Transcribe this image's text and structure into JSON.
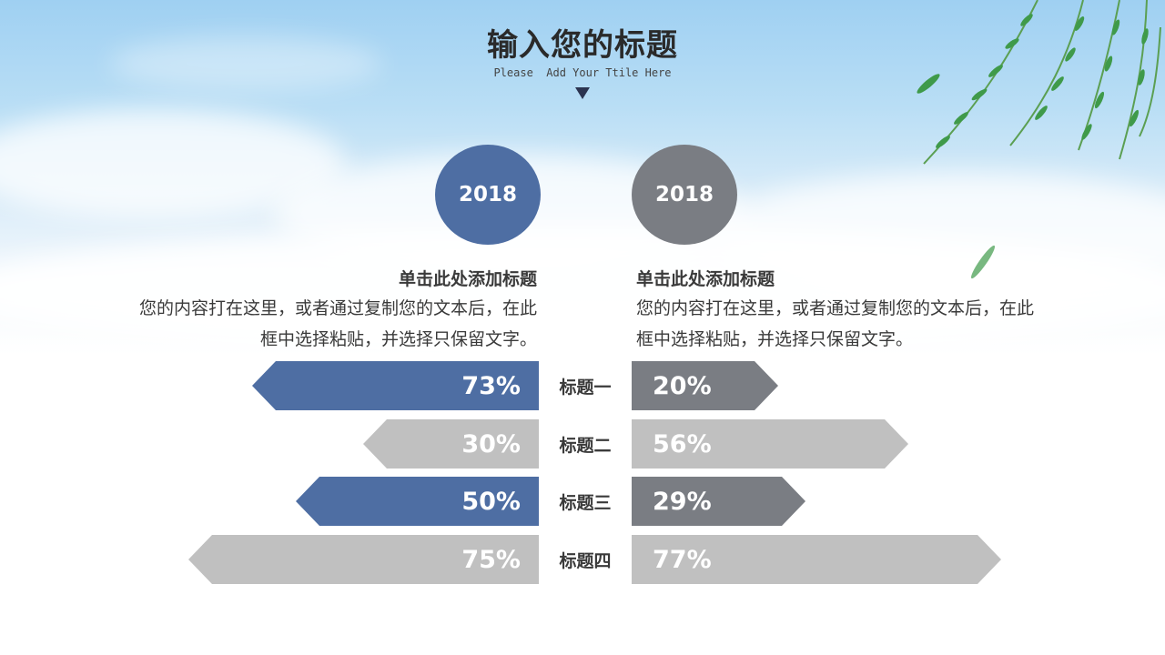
{
  "header": {
    "title": "输入您的标题",
    "subtitle": "Please  Add Your Ttile Here"
  },
  "left": {
    "year": "2018",
    "heading": "单击此处添加标题",
    "body_line1": "您的内容打在这里，或者通过复制您的文本后，在此",
    "body_line2": "框中选择粘贴，并选择只保留文字。"
  },
  "right": {
    "year": "2018",
    "heading": "单击此处添加标题",
    "body_line1": "您的内容打在这里，或者通过复制您的文本后，在此",
    "body_line2": "框中选择粘贴，并选择只保留文字。"
  },
  "rows": [
    {
      "label": "标题一",
      "left_value": "73%",
      "right_value": "20%"
    },
    {
      "label": "标题二",
      "left_value": "30%",
      "right_value": "56%"
    },
    {
      "label": "标题三",
      "left_value": "50%",
      "right_value": "29%"
    },
    {
      "label": "标题四",
      "left_value": "75%",
      "right_value": "77%"
    }
  ],
  "colors": {
    "blue": "#4e6ea3",
    "dark_gray": "#7a7d83",
    "light_gray": "#c0c0c0",
    "text": "#3a3a3a"
  }
}
